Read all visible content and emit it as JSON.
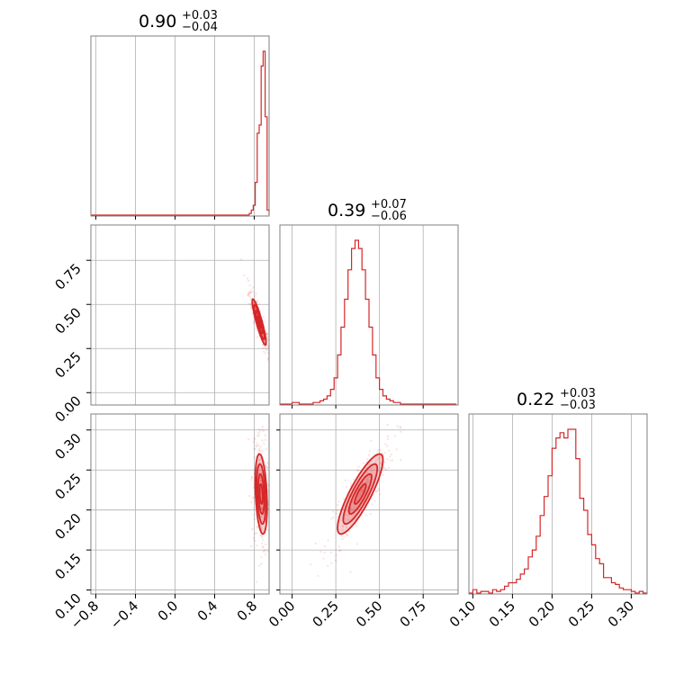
{
  "chart_data": {
    "type": "corner",
    "color": "#d62728",
    "parameters": [
      {
        "title": {
          "value": "0.90",
          "plus": "+0.03",
          "minus": "−0.04"
        },
        "range": [
          -0.85,
          0.95
        ]
      },
      {
        "title": {
          "value": "0.39",
          "plus": "+0.07",
          "minus": "−0.06"
        },
        "range": [
          -0.07,
          0.95
        ]
      },
      {
        "title": {
          "value": "0.22",
          "plus": "+0.03",
          "minus": "−0.03"
        },
        "range": [
          0.095,
          0.32
        ]
      }
    ],
    "ticks": {
      "p0": [
        {
          "v": -0.8,
          "label": "−0.8"
        },
        {
          "v": -0.4,
          "label": "−0.4"
        },
        {
          "v": 0.0,
          "label": "0.0"
        },
        {
          "v": 0.4,
          "label": "0.4"
        },
        {
          "v": 0.8,
          "label": "0.8"
        }
      ],
      "p1": [
        {
          "v": 0.0,
          "label": "0.00"
        },
        {
          "v": 0.25,
          "label": "0.25"
        },
        {
          "v": 0.5,
          "label": "0.50"
        },
        {
          "v": 0.75,
          "label": "0.75"
        }
      ],
      "p2": [
        {
          "v": 0.1,
          "label": "0.10"
        },
        {
          "v": 0.15,
          "label": "0.15"
        },
        {
          "v": 0.2,
          "label": "0.20"
        },
        {
          "v": 0.25,
          "label": "0.25"
        },
        {
          "v": 0.3,
          "label": "0.30"
        }
      ]
    },
    "histograms": [
      {
        "param": 0,
        "edges": [
          0.75,
          0.77,
          0.79,
          0.81,
          0.83,
          0.85,
          0.87,
          0.89,
          0.91,
          0.93,
          0.95
        ],
        "counts": [
          0.01,
          0.03,
          0.06,
          0.2,
          0.5,
          0.55,
          0.91,
          1.0,
          0.6,
          0.03
        ]
      },
      {
        "param": 1,
        "edges": [
          0.0,
          0.02,
          0.04,
          0.06,
          0.08,
          0.1,
          0.12,
          0.14,
          0.16,
          0.18,
          0.2,
          0.22,
          0.24,
          0.26,
          0.28,
          0.3,
          0.32,
          0.34,
          0.36,
          0.38,
          0.4,
          0.42,
          0.44,
          0.46,
          0.48,
          0.5,
          0.52,
          0.54,
          0.56,
          0.58,
          0.6,
          0.62,
          0.64,
          0.66,
          0.68,
          0.7,
          0.72,
          0.74,
          0.76,
          0.78,
          0.8,
          0.82,
          0.84,
          0.86,
          0.88,
          0.9,
          0.92,
          0.94
        ],
        "counts": [
          0.01,
          0.01,
          0.0,
          0.0,
          0.0,
          0.0,
          0.01,
          0.01,
          0.02,
          0.03,
          0.05,
          0.09,
          0.16,
          0.3,
          0.47,
          0.64,
          0.82,
          0.95,
          1.0,
          0.95,
          0.82,
          0.64,
          0.47,
          0.3,
          0.16,
          0.09,
          0.05,
          0.03,
          0.02,
          0.01,
          0.01,
          0.0,
          0.0,
          0.0,
          0.0,
          0.0,
          0.0,
          0.0,
          0.0,
          0.0,
          0.0,
          0.0,
          0.0,
          0.0,
          0.0,
          0.0,
          0.0
        ]
      },
      {
        "param": 2,
        "edges": [
          0.095,
          0.1,
          0.105,
          0.11,
          0.115,
          0.12,
          0.125,
          0.13,
          0.135,
          0.14,
          0.145,
          0.15,
          0.155,
          0.16,
          0.165,
          0.17,
          0.175,
          0.18,
          0.185,
          0.19,
          0.195,
          0.2,
          0.205,
          0.21,
          0.215,
          0.22,
          0.225,
          0.23,
          0.235,
          0.24,
          0.245,
          0.25,
          0.255,
          0.26,
          0.265,
          0.27,
          0.275,
          0.28,
          0.285,
          0.29,
          0.295,
          0.3,
          0.305,
          0.31,
          0.315,
          0.32
        ],
        "counts": [
          0.0,
          0.02,
          0.0,
          0.01,
          0.01,
          0.0,
          0.02,
          0.01,
          0.02,
          0.04,
          0.06,
          0.06,
          0.08,
          0.11,
          0.14,
          0.21,
          0.25,
          0.33,
          0.45,
          0.56,
          0.68,
          0.84,
          0.9,
          0.93,
          0.9,
          0.95,
          0.95,
          0.78,
          0.55,
          0.48,
          0.34,
          0.28,
          0.2,
          0.17,
          0.09,
          0.09,
          0.06,
          0.05,
          0.03,
          0.02,
          0.02,
          0.01,
          0.0,
          0.01,
          0.0
        ]
      }
    ],
    "pairs": [
      {
        "x": 0,
        "y": 1,
        "center": [
          0.85,
          0.4
        ],
        "sd": [
          0.035,
          0.065
        ],
        "rho": -0.9
      },
      {
        "x": 0,
        "y": 2,
        "center": [
          0.87,
          0.22
        ],
        "sd": [
          0.03,
          0.025
        ],
        "rho": -0.3
      },
      {
        "x": 1,
        "y": 2,
        "center": [
          0.39,
          0.22
        ],
        "sd": [
          0.065,
          0.025
        ],
        "rho": 0.85
      }
    ],
    "contour_levels": [
      0.5,
      1.0,
      1.5,
      2.0
    ],
    "grid": true
  }
}
